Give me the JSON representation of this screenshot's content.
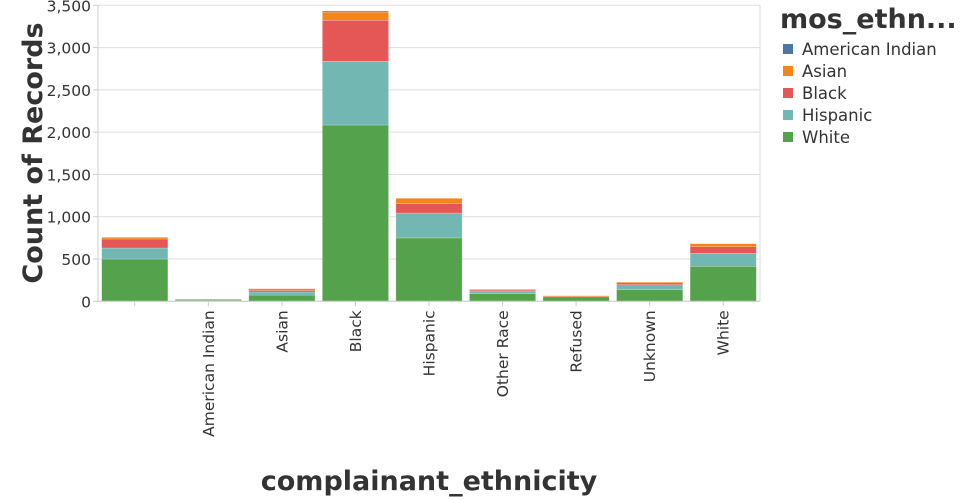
{
  "chart_data": {
    "type": "bar",
    "stacked": true,
    "xlabel": "complainant_ethnicity",
    "ylabel": "Count of Records",
    "ylim": [
      0,
      3500
    ],
    "yticks": [
      0,
      500,
      1000,
      1500,
      2000,
      2500,
      3000,
      3500
    ],
    "ytick_labels": [
      "0",
      "500",
      "1,000",
      "1,500",
      "2,000",
      "2,500",
      "3,000",
      "3,500"
    ],
    "grid": true,
    "categories": [
      "",
      "American Indian",
      "Asian",
      "Black",
      "Hispanic",
      "Other Race",
      "Refused",
      "Unknown",
      "White"
    ],
    "legend": {
      "title": "mos_ethn...",
      "placement": "right",
      "entries": [
        "American Indian",
        "Asian",
        "Black",
        "Hispanic",
        "White"
      ]
    },
    "series": [
      {
        "name": "White",
        "color": "#54a24b",
        "values": [
          500,
          18,
          74,
          2085,
          749,
          90,
          56,
          137,
          414
        ]
      },
      {
        "name": "Hispanic",
        "color": "#72b7b2",
        "values": [
          130,
          4,
          36,
          753,
          295,
          32,
          0,
          59,
          153
        ]
      },
      {
        "name": "Black",
        "color": "#e45756",
        "values": [
          107,
          2,
          20,
          485,
          110,
          15,
          6,
          24,
          79
        ]
      },
      {
        "name": "Asian",
        "color": "#f58518",
        "values": [
          20,
          0,
          19,
          97,
          64,
          5,
          4,
          8,
          35
        ]
      },
      {
        "name": "American Indian",
        "color": "#4c78a8",
        "values": [
          0,
          0,
          0,
          12,
          0,
          0,
          0,
          0,
          0
        ]
      }
    ]
  }
}
